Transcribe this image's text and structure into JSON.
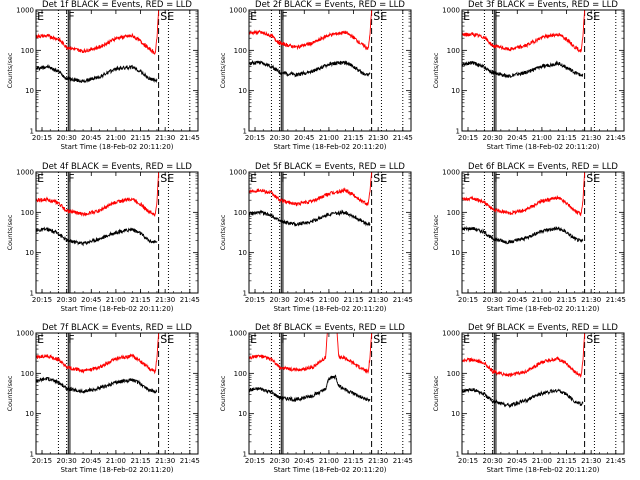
{
  "chart_data": [
    {
      "type": "line",
      "title": "Det 1f BLACK = Events, RED = LLD",
      "ylabel": "Counts/sec",
      "xlabel": "Start Time (18-Feb-02 20:11:20)",
      "ylog": true,
      "ylim": [
        1,
        1000
      ],
      "yticks": [
        "1",
        "10",
        "100",
        "1000"
      ],
      "xlim": [
        "20:11:20",
        "21:50:00"
      ],
      "xticks": [
        "20:15",
        "20:30",
        "20:45",
        "21:00",
        "21:15",
        "21:30",
        "21:45"
      ],
      "series": [
        {
          "color": "#000000",
          "x": [
            "20:11",
            "20:18",
            "20:25",
            "20:30",
            "20:40",
            "20:50",
            "21:00",
            "21:10",
            "21:15",
            "21:20",
            "21:24",
            "21:25"
          ],
          "values": [
            35,
            40,
            30,
            20,
            17,
            22,
            35,
            38,
            30,
            20,
            18,
            19
          ]
        },
        {
          "color": "#ff0000",
          "x": [
            "20:11",
            "20:18",
            "20:25",
            "20:30",
            "20:40",
            "20:50",
            "21:00",
            "21:10",
            "21:15",
            "21:20",
            "21:24",
            "21:25",
            "21:26"
          ],
          "values": [
            220,
            230,
            190,
            120,
            95,
            120,
            200,
            230,
            170,
            110,
            85,
            200,
            1000
          ]
        }
      ],
      "markers": [
        "E",
        "F",
        "SE"
      ]
    },
    {
      "type": "line",
      "title": "Det 2f BLACK = Events, RED = LLD",
      "ylabel": "Counts/sec",
      "xlabel": "Start Time (18-Feb-02 20:11:20)",
      "ylog": true,
      "ylim": [
        1,
        1000
      ],
      "yticks": [
        "1",
        "10",
        "100",
        "1000"
      ],
      "xlim": [
        "20:11:20",
        "21:50:00"
      ],
      "xticks": [
        "20:15",
        "20:30",
        "20:45",
        "21:00",
        "21:15",
        "21:30",
        "21:45"
      ],
      "series": [
        {
          "color": "#000000",
          "x": [
            "20:11",
            "20:18",
            "20:25",
            "20:30",
            "20:40",
            "20:50",
            "21:00",
            "21:10",
            "21:15",
            "21:20",
            "21:24",
            "21:25"
          ],
          "values": [
            48,
            50,
            40,
            28,
            25,
            30,
            45,
            50,
            40,
            28,
            25,
            26
          ]
        },
        {
          "color": "#ff0000",
          "x": [
            "20:11",
            "20:18",
            "20:25",
            "20:30",
            "20:40",
            "20:50",
            "21:00",
            "21:10",
            "21:15",
            "21:20",
            "21:24",
            "21:25",
            "21:26"
          ],
          "values": [
            270,
            280,
            230,
            150,
            120,
            150,
            240,
            280,
            210,
            140,
            110,
            250,
            1000
          ]
        }
      ],
      "markers": [
        "E",
        "F",
        "SE"
      ]
    },
    {
      "type": "line",
      "title": "Det 3f BLACK = Events, RED = LLD",
      "ylabel": "Counts/sec",
      "xlabel": "Start Time (18-Feb-02 20:11:20)",
      "ylog": true,
      "ylim": [
        1,
        1000
      ],
      "yticks": [
        "1",
        "10",
        "100",
        "1000"
      ],
      "xlim": [
        "20:11:20",
        "21:50:00"
      ],
      "xticks": [
        "20:15",
        "20:30",
        "20:45",
        "21:00",
        "21:15",
        "21:30",
        "21:45"
      ],
      "series": [
        {
          "color": "#000000",
          "x": [
            "20:11",
            "20:18",
            "20:25",
            "20:30",
            "20:40",
            "20:50",
            "21:00",
            "21:10",
            "21:15",
            "21:20",
            "21:24",
            "21:25"
          ],
          "values": [
            45,
            50,
            38,
            28,
            23,
            28,
            40,
            48,
            38,
            28,
            24,
            25
          ]
        },
        {
          "color": "#ff0000",
          "x": [
            "20:11",
            "20:18",
            "20:25",
            "20:30",
            "20:40",
            "20:50",
            "21:00",
            "21:10",
            "21:15",
            "21:20",
            "21:24",
            "21:25",
            "21:26"
          ],
          "values": [
            240,
            250,
            210,
            130,
            105,
            130,
            210,
            250,
            190,
            120,
            95,
            230,
            1000
          ]
        }
      ],
      "markers": [
        "E",
        "F",
        "SE"
      ]
    },
    {
      "type": "line",
      "title": "Det 4f BLACK = Events, RED = LLD",
      "ylabel": "Counts/sec",
      "xlabel": "Start Time (18-Feb-02 20:11:20)",
      "ylog": true,
      "ylim": [
        1,
        1000
      ],
      "yticks": [
        "1",
        "10",
        "100",
        "1000"
      ],
      "xlim": [
        "20:11:20",
        "21:50:00"
      ],
      "xticks": [
        "20:15",
        "20:30",
        "20:45",
        "21:00",
        "21:15",
        "21:30",
        "21:45"
      ],
      "series": [
        {
          "color": "#000000",
          "x": [
            "20:11",
            "20:18",
            "20:25",
            "20:30",
            "20:40",
            "20:50",
            "21:00",
            "21:10",
            "21:15",
            "21:20",
            "21:24",
            "21:25"
          ],
          "values": [
            35,
            38,
            30,
            20,
            17,
            22,
            32,
            38,
            30,
            20,
            18,
            19
          ]
        },
        {
          "color": "#ff0000",
          "x": [
            "20:11",
            "20:18",
            "20:25",
            "20:30",
            "20:40",
            "20:50",
            "21:00",
            "21:10",
            "21:15",
            "21:20",
            "21:24",
            "21:25",
            "21:26"
          ],
          "values": [
            200,
            210,
            170,
            110,
            90,
            110,
            180,
            220,
            160,
            105,
            85,
            190,
            1000
          ]
        }
      ],
      "markers": [
        "E",
        "F",
        "SE"
      ]
    },
    {
      "type": "line",
      "title": "Det 5f BLACK = Events, RED = LLD",
      "ylabel": "Counts/sec",
      "xlabel": "Start Time (18-Feb-02 20:11:20)",
      "ylog": true,
      "ylim": [
        1,
        1000
      ],
      "yticks": [
        "1",
        "10",
        "100",
        "1000"
      ],
      "xlim": [
        "20:11:20",
        "21:50:00"
      ],
      "xticks": [
        "20:15",
        "20:30",
        "20:45",
        "21:00",
        "21:15",
        "21:30",
        "21:45"
      ],
      "series": [
        {
          "color": "#000000",
          "x": [
            "20:11",
            "20:18",
            "20:25",
            "20:30",
            "20:40",
            "20:50",
            "21:00",
            "21:10",
            "21:15",
            "21:20",
            "21:24",
            "21:25"
          ],
          "values": [
            90,
            100,
            85,
            60,
            50,
            60,
            90,
            100,
            80,
            60,
            50,
            52
          ]
        },
        {
          "color": "#ff0000",
          "x": [
            "20:11",
            "20:18",
            "20:25",
            "20:30",
            "20:40",
            "20:50",
            "21:00",
            "21:10",
            "21:15",
            "21:20",
            "21:24",
            "21:25",
            "21:26"
          ],
          "values": [
            330,
            360,
            300,
            200,
            160,
            190,
            290,
            350,
            270,
            190,
            160,
            330,
            1000
          ]
        }
      ],
      "markers": [
        "E",
        "F",
        "SE"
      ]
    },
    {
      "type": "line",
      "title": "Det 6f BLACK = Events, RED = LLD",
      "ylabel": "Counts/sec",
      "xlabel": "Start Time (18-Feb-02 20:11:20)",
      "ylog": true,
      "ylim": [
        1,
        1000
      ],
      "yticks": [
        "1",
        "10",
        "100",
        "1000"
      ],
      "xlim": [
        "20:11:20",
        "21:50:00"
      ],
      "xticks": [
        "20:15",
        "20:30",
        "20:45",
        "21:00",
        "21:15",
        "21:30",
        "21:45"
      ],
      "series": [
        {
          "color": "#000000",
          "x": [
            "20:11",
            "20:18",
            "20:25",
            "20:30",
            "20:40",
            "20:50",
            "21:00",
            "21:10",
            "21:15",
            "21:20",
            "21:24",
            "21:25"
          ],
          "values": [
            38,
            40,
            32,
            22,
            18,
            23,
            35,
            40,
            32,
            22,
            19,
            20
          ]
        },
        {
          "color": "#ff0000",
          "x": [
            "20:11",
            "20:18",
            "20:25",
            "20:30",
            "20:40",
            "20:50",
            "21:00",
            "21:10",
            "21:15",
            "21:20",
            "21:24",
            "21:25",
            "21:26"
          ],
          "values": [
            210,
            220,
            180,
            115,
            95,
            115,
            190,
            230,
            170,
            110,
            90,
            200,
            1000
          ]
        }
      ],
      "markers": [
        "E",
        "F",
        "SE"
      ]
    },
    {
      "type": "line",
      "title": "Det 7f BLACK = Events, RED = LLD",
      "ylabel": "Counts/sec",
      "xlabel": "Start Time (18-Feb-02 20:11:20)",
      "ylog": true,
      "ylim": [
        1,
        1000
      ],
      "yticks": [
        "1",
        "10",
        "100",
        "1000"
      ],
      "xlim": [
        "20:11:20",
        "21:50:00"
      ],
      "xticks": [
        "20:15",
        "20:30",
        "20:45",
        "21:00",
        "21:15",
        "21:30",
        "21:45"
      ],
      "series": [
        {
          "color": "#000000",
          "x": [
            "20:11",
            "20:18",
            "20:25",
            "20:30",
            "20:40",
            "20:50",
            "21:00",
            "21:10",
            "21:15",
            "21:20",
            "21:24",
            "21:25"
          ],
          "values": [
            65,
            75,
            60,
            42,
            35,
            42,
            60,
            70,
            55,
            40,
            35,
            36
          ]
        },
        {
          "color": "#ff0000",
          "x": [
            "20:11",
            "20:18",
            "20:25",
            "20:30",
            "20:40",
            "20:50",
            "21:00",
            "21:10",
            "21:15",
            "21:20",
            "21:24",
            "21:25",
            "21:26"
          ],
          "values": [
            250,
            270,
            220,
            140,
            115,
            140,
            230,
            270,
            200,
            135,
            110,
            250,
            1000
          ]
        }
      ],
      "markers": [
        "E",
        "F",
        "SE"
      ]
    },
    {
      "type": "line",
      "title": "Det 8f BLACK = Events, RED = LLD",
      "ylabel": "Counts/sec",
      "xlabel": "Start Time (18-Feb-02 20:11:20)",
      "ylog": true,
      "ylim": [
        1,
        1000
      ],
      "yticks": [
        "1",
        "10",
        "100",
        "1000"
      ],
      "xlim": [
        "20:11:20",
        "21:50:00"
      ],
      "xticks": [
        "20:15",
        "20:30",
        "20:45",
        "21:00",
        "21:15",
        "21:30",
        "21:45"
      ],
      "series": [
        {
          "color": "#000000",
          "x": [
            "20:11",
            "20:18",
            "20:25",
            "20:30",
            "20:40",
            "20:50",
            "20:58",
            "21:00",
            "21:04",
            "21:06",
            "21:10",
            "21:15",
            "21:20",
            "21:24",
            "21:25"
          ],
          "values": [
            38,
            42,
            34,
            25,
            22,
            28,
            40,
            75,
            85,
            50,
            40,
            32,
            25,
            22,
            23
          ]
        },
        {
          "color": "#ff0000",
          "x": [
            "20:11",
            "20:18",
            "20:25",
            "20:30",
            "20:40",
            "20:50",
            "20:58",
            "20:59",
            "21:05",
            "21:06",
            "21:10",
            "21:15",
            "21:20",
            "21:24",
            "21:25",
            "21:26"
          ],
          "values": [
            250,
            270,
            220,
            140,
            120,
            140,
            250,
            1000,
            1000,
            250,
            240,
            180,
            130,
            110,
            250,
            1000
          ]
        }
      ],
      "markers": [
        "E",
        "F",
        "SE"
      ]
    },
    {
      "type": "line",
      "title": "Det 9f BLACK = Events, RED = LLD",
      "ylabel": "Counts/sec",
      "xlabel": "Start Time (18-Feb-02 20:11:20)",
      "ylog": true,
      "ylim": [
        1,
        1000
      ],
      "yticks": [
        "1",
        "10",
        "100",
        "1000"
      ],
      "xlim": [
        "20:11:20",
        "21:50:00"
      ],
      "xticks": [
        "20:15",
        "20:30",
        "20:45",
        "21:00",
        "21:15",
        "21:30",
        "21:45"
      ],
      "series": [
        {
          "color": "#000000",
          "x": [
            "20:11",
            "20:18",
            "20:25",
            "20:30",
            "20:40",
            "20:50",
            "21:00",
            "21:10",
            "21:15",
            "21:20",
            "21:24",
            "21:25"
          ],
          "values": [
            35,
            40,
            30,
            20,
            16,
            21,
            32,
            38,
            30,
            20,
            17,
            18
          ]
        },
        {
          "color": "#ff0000",
          "x": [
            "20:11",
            "20:18",
            "20:25",
            "20:30",
            "20:40",
            "20:50",
            "21:00",
            "21:10",
            "21:15",
            "21:20",
            "21:24",
            "21:25",
            "21:26"
          ],
          "values": [
            210,
            220,
            180,
            110,
            90,
            110,
            190,
            230,
            170,
            110,
            90,
            210,
            1000
          ]
        }
      ],
      "markers": [
        "E",
        "F",
        "SE"
      ]
    }
  ]
}
